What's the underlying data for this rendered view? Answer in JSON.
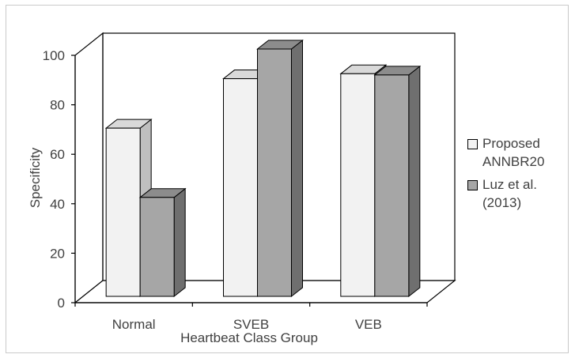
{
  "chart_data": {
    "type": "bar",
    "categories": [
      "Normal",
      "SVEB",
      "VEB"
    ],
    "series": [
      {
        "name": "Proposed\nANNBR20",
        "values": [
          68,
          88,
          90
        ],
        "color": "#f2f2f2"
      },
      {
        "name": "Luz et al.\n(2013)",
        "values": [
          40,
          100,
          89.5
        ],
        "color": "#a6a6a6"
      }
    ],
    "xlabel": "Heartbeat Class Group",
    "ylabel": "Specificity",
    "yticks": [
      0,
      20,
      40,
      60,
      80,
      100
    ],
    "ylim": [
      0,
      100
    ],
    "grid": false,
    "legend_position": "right",
    "style": "3d-column"
  }
}
